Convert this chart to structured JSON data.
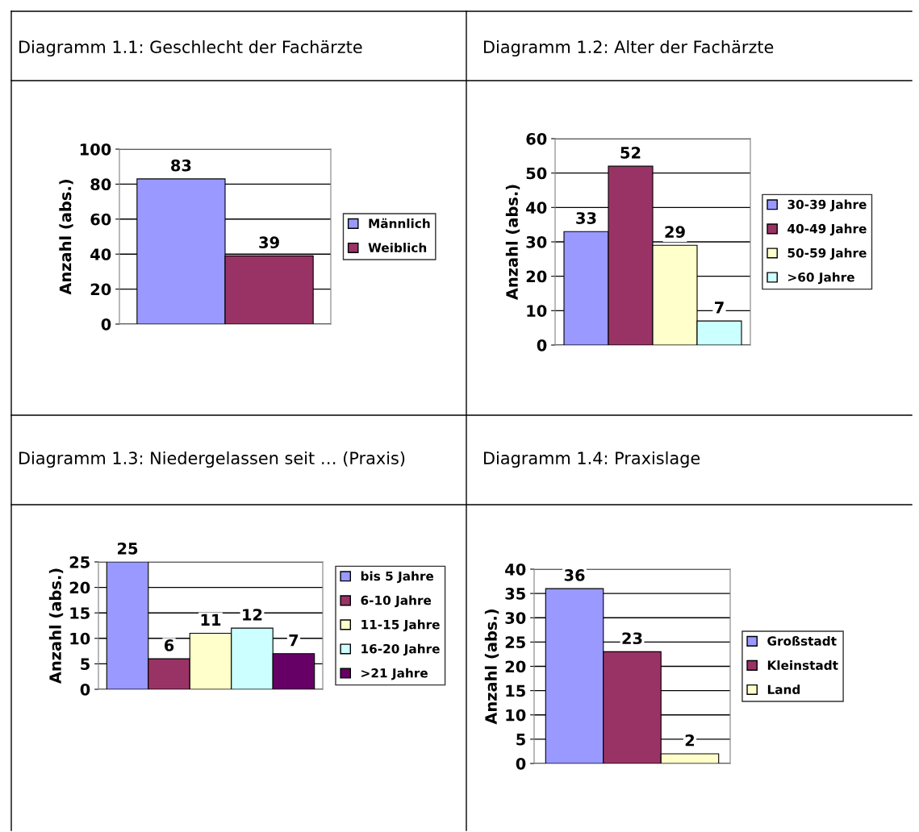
{
  "chart_data": [
    {
      "type": "bar",
      "title": "Diagramm 1.1: Geschlecht der Fachärzte",
      "ylabel": "Anzahl (abs.)",
      "categories": [
        null,
        null
      ],
      "series": [
        {
          "name": "Männlich",
          "color": "#9999ff",
          "values": [
            83,
            null
          ]
        },
        {
          "name": "Weiblich",
          "color": "#993366",
          "values": [
            null,
            39
          ]
        }
      ],
      "ylim": [
        0,
        100
      ],
      "yticks": [
        0,
        20,
        40,
        60,
        80,
        100
      ],
      "grid": "y",
      "legend": "right",
      "data_labels": true
    },
    {
      "type": "bar",
      "title": "Diagramm 1.2: Alter der Fachärzte",
      "ylabel": "Anzahl (abs.)",
      "categories": [
        null,
        null,
        null,
        null
      ],
      "series": [
        {
          "name": "30-39 Jahre",
          "color": "#9999ff",
          "values": [
            33,
            null,
            null,
            null
          ]
        },
        {
          "name": "40-49 Jahre",
          "color": "#993366",
          "values": [
            null,
            52,
            null,
            null
          ]
        },
        {
          "name": "50-59 Jahre",
          "color": "#ffffcc",
          "values": [
            null,
            null,
            29,
            null
          ]
        },
        {
          "name": ">60 Jahre",
          "color": "#ccffff",
          "values": [
            null,
            null,
            null,
            7
          ]
        }
      ],
      "ylim": [
        0,
        60
      ],
      "yticks": [
        0,
        10,
        20,
        30,
        40,
        50,
        60
      ],
      "grid": "y",
      "legend": "right",
      "data_labels": true
    },
    {
      "type": "bar",
      "title": "Diagramm 1.3: Niedergelassen seit … (Praxis)",
      "ylabel": "Anzahl (abs.)",
      "categories": [
        null,
        null,
        null,
        null,
        null
      ],
      "series": [
        {
          "name": "bis 5 Jahre",
          "color": "#9999ff",
          "values": [
            25,
            null,
            null,
            null,
            null
          ]
        },
        {
          "name": "6-10 Jahre",
          "color": "#993366",
          "values": [
            null,
            6,
            null,
            null,
            null
          ]
        },
        {
          "name": "11-15 Jahre",
          "color": "#ffffcc",
          "values": [
            null,
            null,
            11,
            null,
            null
          ]
        },
        {
          "name": "16-20 Jahre",
          "color": "#ccffff",
          "values": [
            null,
            null,
            null,
            12,
            null
          ]
        },
        {
          "name": ">21 Jahre",
          "color": "#660066",
          "values": [
            null,
            null,
            null,
            null,
            7
          ]
        }
      ],
      "ylim": [
        0,
        25
      ],
      "yticks": [
        0,
        5,
        10,
        15,
        20,
        25
      ],
      "grid": "y",
      "legend": "right",
      "data_labels": true
    },
    {
      "type": "bar",
      "title": "Diagramm 1.4: Praxislage",
      "ylabel": "Anzahl (abs.)",
      "categories": [
        null,
        null,
        null
      ],
      "series": [
        {
          "name": "Großstadt",
          "color": "#9999ff",
          "values": [
            36,
            null,
            null
          ]
        },
        {
          "name": "Kleinstadt",
          "color": "#993366",
          "values": [
            null,
            23,
            null
          ]
        },
        {
          "name": "Land",
          "color": "#ffffcc",
          "values": [
            null,
            null,
            2
          ]
        }
      ],
      "ylim": [
        0,
        40
      ],
      "yticks": [
        0,
        5,
        10,
        15,
        20,
        25,
        30,
        35,
        40
      ],
      "grid": "y",
      "legend": "right",
      "data_labels": true
    }
  ]
}
